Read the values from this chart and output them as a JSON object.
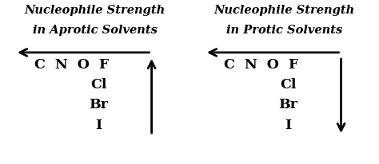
{
  "left_title_line1": "Nucleophile Strength",
  "left_title_line2": "in Aprotic Solvents",
  "right_title_line1": "Nucleophile Strength",
  "right_title_line2": "in Protic Solvents",
  "cnof_label": "C  N  O  F",
  "lower_labels": [
    "Cl",
    "Br",
    "I"
  ],
  "bg_color": "#ffffff",
  "text_color": "#000000",
  "title_fontsize": 10.5,
  "label_fontsize": 12.5,
  "arrow_color": "#000000",
  "arrow_lw": 2.0,
  "arrow_mutation_scale": 16
}
